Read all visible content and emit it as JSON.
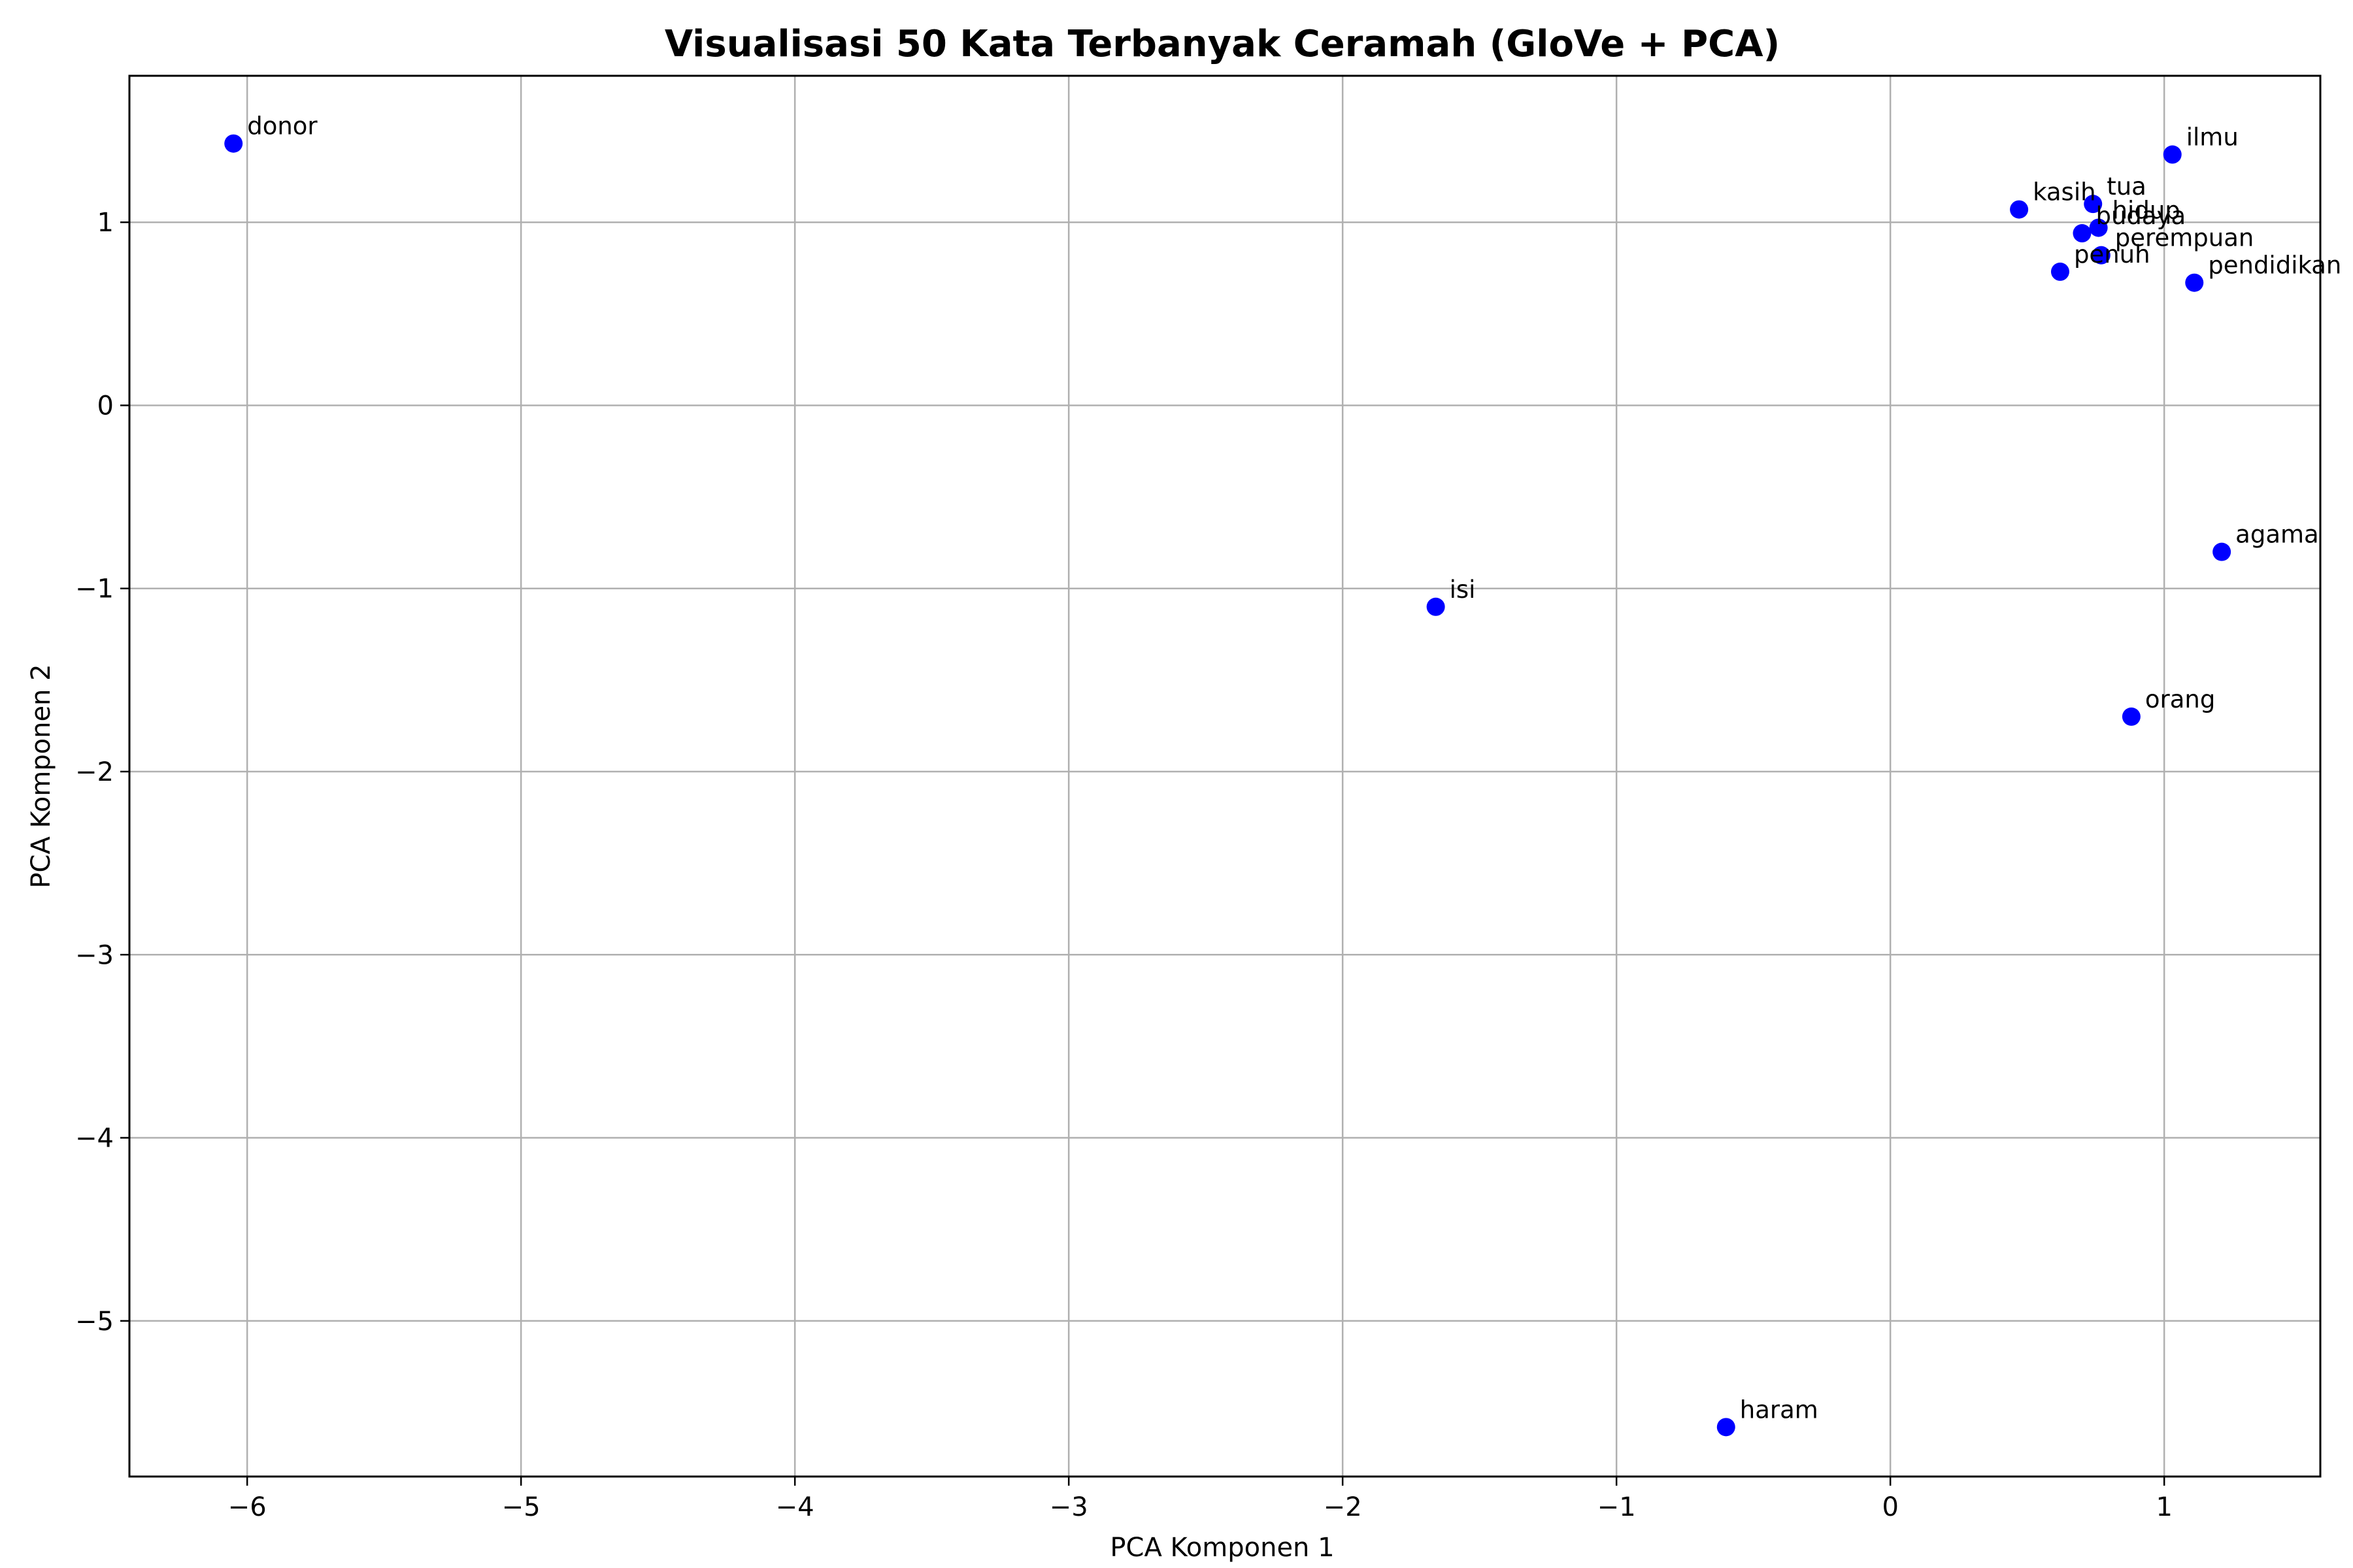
{
  "chart_data": {
    "type": "scatter",
    "title": "Visualisasi 50 Kata Terbanyak Ceramah (GloVe + PCA)",
    "xlabel": "PCA Komponen 1",
    "ylabel": "PCA Komponen 2",
    "xlim": [
      -6.43,
      1.57
    ],
    "ylim": [
      -5.85,
      1.8
    ],
    "xticks": [
      -6,
      -5,
      -4,
      -3,
      -2,
      -1,
      0,
      1
    ],
    "xtick_labels": [
      "−6",
      "−5",
      "−4",
      "−3",
      "−2",
      "−1",
      "0",
      "1"
    ],
    "yticks": [
      1,
      0,
      -1,
      -2,
      -3,
      -4,
      -5
    ],
    "ytick_labels": [
      "1",
      "0",
      "−1",
      "−2",
      "−3",
      "−4",
      "−5"
    ],
    "grid": true,
    "marker_color": "#0000ff",
    "points": [
      {
        "label": "donor",
        "x": -6.05,
        "y": 1.43
      },
      {
        "label": "ilmu",
        "x": 1.03,
        "y": 1.37
      },
      {
        "label": "tua",
        "x": 0.74,
        "y": 1.1
      },
      {
        "label": "kasih",
        "x": 0.47,
        "y": 1.07
      },
      {
        "label": "hidup",
        "x": 0.76,
        "y": 0.97
      },
      {
        "label": "budaya",
        "x": 0.7,
        "y": 0.94
      },
      {
        "label": "perempuan",
        "x": 0.77,
        "y": 0.82
      },
      {
        "label": "penuh",
        "x": 0.62,
        "y": 0.73
      },
      {
        "label": "pendidikan",
        "x": 1.11,
        "y": 0.67
      },
      {
        "label": "agama",
        "x": 1.21,
        "y": -0.8
      },
      {
        "label": "isi",
        "x": -1.66,
        "y": -1.1
      },
      {
        "label": "orang",
        "x": 0.88,
        "y": -1.7
      },
      {
        "label": "haram",
        "x": -0.6,
        "y": -5.58
      }
    ]
  }
}
